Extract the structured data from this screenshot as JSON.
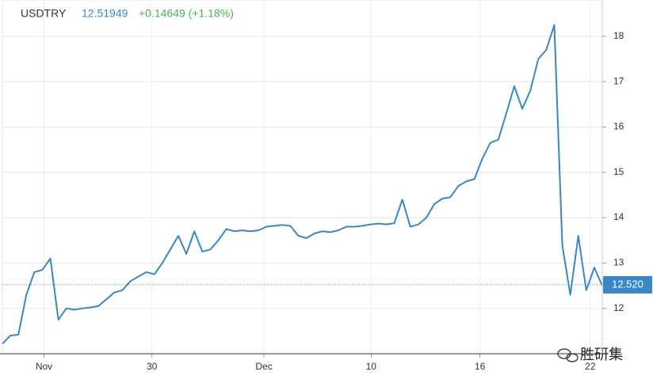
{
  "header": {
    "symbol": "USDTRY",
    "price": "12.51949",
    "change": "+0.14649 (+1.18%)"
  },
  "chart_data": {
    "type": "line",
    "x": [
      0,
      1,
      2,
      3,
      4,
      5,
      6,
      7,
      8,
      9,
      10,
      11,
      12,
      13,
      14,
      15,
      16,
      17,
      18,
      19,
      20,
      21,
      22,
      23,
      24,
      25,
      26,
      27,
      28,
      29,
      30,
      31,
      32,
      33,
      34,
      35,
      36,
      37,
      38,
      39,
      40,
      41,
      42,
      43,
      44,
      45,
      46,
      47,
      48,
      49,
      50,
      51,
      52,
      53,
      54,
      55,
      56,
      57,
      58,
      59,
      60,
      61,
      62,
      63,
      64,
      65,
      66,
      67,
      68,
      69,
      70,
      71,
      72,
      73,
      74,
      75
    ],
    "series": [
      {
        "name": "USDTRY",
        "color": "#3a87c8",
        "values": [
          11.22,
          11.4,
          11.42,
          12.3,
          12.8,
          12.85,
          13.1,
          11.75,
          12.0,
          11.97,
          12.0,
          12.02,
          12.05,
          12.2,
          12.35,
          12.4,
          12.6,
          12.7,
          12.8,
          12.75,
          13.0,
          13.3,
          13.6,
          13.2,
          13.7,
          13.25,
          13.3,
          13.5,
          13.75,
          13.7,
          13.72,
          13.7,
          13.72,
          13.8,
          13.82,
          13.84,
          13.82,
          13.6,
          13.55,
          13.65,
          13.7,
          13.68,
          13.72,
          13.8,
          13.8,
          13.82,
          13.85,
          13.87,
          13.85,
          13.88,
          14.4,
          13.8,
          13.85,
          14.0,
          14.3,
          14.42,
          14.45,
          14.7,
          14.8,
          14.85,
          15.3,
          15.65,
          15.72,
          16.3,
          16.9,
          16.4,
          16.8,
          17.5,
          17.7,
          18.25,
          13.4,
          12.3,
          13.6,
          12.4,
          12.9,
          12.5
        ]
      }
    ],
    "xlim": [
      0,
      75
    ],
    "xticks": [
      {
        "value": 5.2,
        "label": "Nov"
      },
      {
        "value": 18.7,
        "label": "30"
      },
      {
        "value": 32.7,
        "label": "Dec"
      },
      {
        "value": 46.1,
        "label": "10"
      },
      {
        "value": 59.7,
        "label": "16"
      },
      {
        "value": 73.5,
        "label": "22"
      }
    ],
    "ylim": [
      11,
      18.8
    ],
    "yticks": [
      12,
      13,
      14,
      15,
      16,
      17,
      18
    ],
    "last_value": {
      "value": 12.52,
      "label": "12.520"
    },
    "grid": true
  },
  "watermark": "胜研集"
}
